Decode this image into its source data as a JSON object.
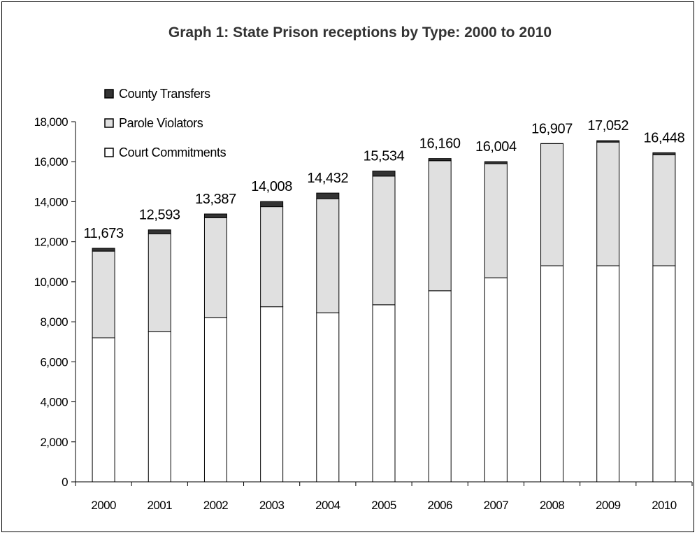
{
  "chart_data": {
    "type": "bar",
    "stacked": true,
    "title": "Graph 1: State Prison receptions by Type: 2000 to 2010",
    "categories": [
      "2000",
      "2001",
      "2002",
      "2003",
      "2004",
      "2005",
      "2006",
      "2007",
      "2008",
      "2009",
      "2010"
    ],
    "series": [
      {
        "name": "Court Commitments",
        "color": "#ffffff",
        "values": [
          7200,
          7500,
          8200,
          8750,
          8450,
          8850,
          9550,
          10200,
          10800,
          10800,
          10800
        ]
      },
      {
        "name": "Parole Violators",
        "color": "#e0e0e0",
        "values": [
          4330,
          4900,
          5000,
          5000,
          5700,
          6430,
          6500,
          5700,
          6100,
          6180,
          5550
        ]
      },
      {
        "name": "County Transfers",
        "color": "#333333",
        "values": [
          143,
          193,
          187,
          258,
          282,
          254,
          110,
          104,
          7,
          72,
          98
        ]
      }
    ],
    "totals": [
      "11,673",
      "12,593",
      "13,387",
      "14,008",
      "14,432",
      "15,534",
      "16,160",
      "16,004",
      "16,907",
      "17,052",
      "16,448"
    ],
    "y_ticks": [
      "0",
      "2,000",
      "4,000",
      "6,000",
      "8,000",
      "10,000",
      "12,000",
      "14,000",
      "16,000",
      "18,000"
    ],
    "ylim": [
      0,
      18000
    ],
    "grid": false,
    "legend_position": "top-left",
    "legend_order": [
      "County Transfers",
      "Parole Violators",
      "Court Commitments"
    ]
  }
}
